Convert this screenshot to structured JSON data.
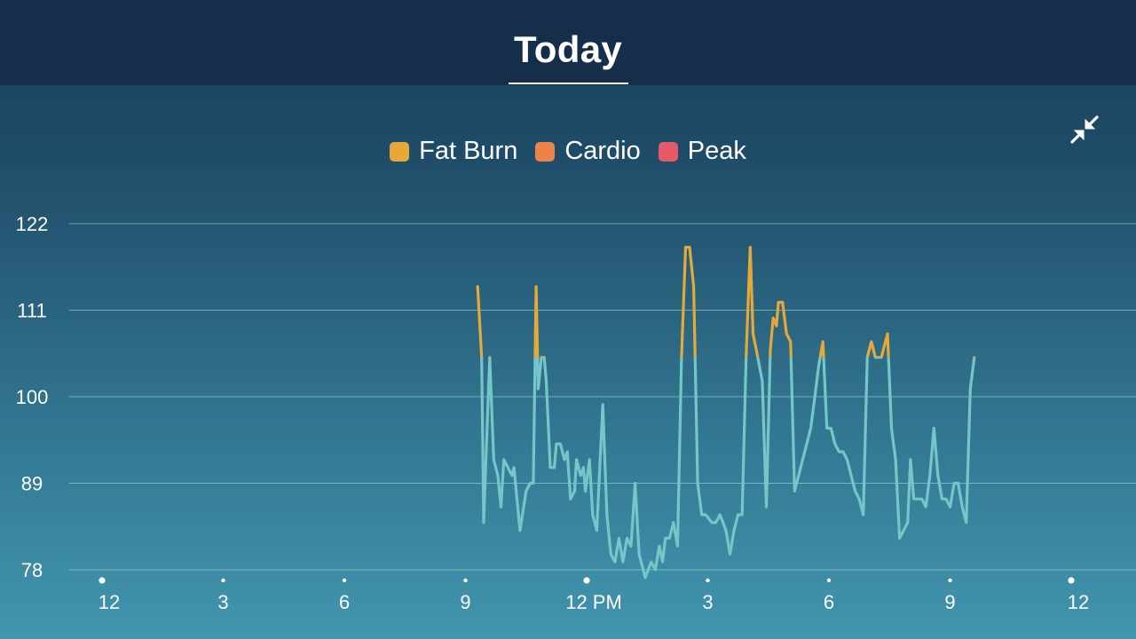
{
  "header": {
    "title": "Today"
  },
  "controls": {
    "collapse_icon": "collapse-arrows-icon"
  },
  "colors": {
    "fat_burn": "#e5a93a",
    "cardio": "#ec8446",
    "peak": "#e65a68",
    "line_normal": "#74c6c9",
    "grid": "#b9dbe4"
  },
  "legend": [
    {
      "label": "Fat Burn",
      "color": "#e5a93a"
    },
    {
      "label": "Cardio",
      "color": "#ec8446"
    },
    {
      "label": "Peak",
      "color": "#e65a68"
    }
  ],
  "chart_data": {
    "type": "line",
    "title": "",
    "xlabel": "",
    "ylabel": "",
    "grid": true,
    "legend_position": "top-center",
    "y_ticks": [
      122,
      111,
      100,
      89,
      78
    ],
    "ylim": [
      78,
      122
    ],
    "x_ticks": [
      "12",
      "3",
      "6",
      "9",
      "12 PM",
      "3",
      "6",
      "9",
      "12"
    ],
    "x_tick_hours": [
      0,
      3,
      6,
      9,
      12,
      15,
      18,
      21,
      24
    ],
    "xlim": [
      0,
      24
    ],
    "zone_thresholds": {
      "fat_burn_min": 105
    },
    "series": [
      {
        "points": [
          [
            9.3,
            114
          ],
          [
            9.4,
            105
          ],
          [
            9.45,
            84
          ],
          [
            9.55,
            98
          ],
          [
            9.6,
            105
          ],
          [
            9.7,
            92
          ],
          [
            9.8,
            90
          ],
          [
            9.88,
            86
          ],
          [
            9.95,
            92
          ],
          [
            10.05,
            91
          ],
          [
            10.15,
            90
          ],
          [
            10.2,
            91
          ],
          [
            10.35,
            83
          ],
          [
            10.5,
            88
          ],
          [
            10.6,
            89
          ],
          [
            10.68,
            89
          ],
          [
            10.75,
            114
          ],
          [
            10.8,
            101
          ],
          [
            10.88,
            105
          ],
          [
            10.95,
            105
          ],
          [
            11.0,
            102
          ],
          [
            11.1,
            91
          ],
          [
            11.2,
            91
          ],
          [
            11.25,
            94
          ],
          [
            11.35,
            94
          ],
          [
            11.45,
            92
          ],
          [
            11.52,
            93
          ],
          [
            11.6,
            87
          ],
          [
            11.7,
            88
          ],
          [
            11.75,
            92
          ],
          [
            11.85,
            90
          ],
          [
            11.92,
            91
          ],
          [
            11.97,
            88
          ],
          [
            12.07,
            92
          ],
          [
            12.15,
            85
          ],
          [
            12.25,
            83
          ],
          [
            12.4,
            99
          ],
          [
            12.5,
            85
          ],
          [
            12.6,
            80
          ],
          [
            12.7,
            79
          ],
          [
            12.8,
            82
          ],
          [
            12.9,
            79
          ],
          [
            13.0,
            82
          ],
          [
            13.1,
            81
          ],
          [
            13.2,
            89
          ],
          [
            13.3,
            80
          ],
          [
            13.45,
            77
          ],
          [
            13.6,
            79
          ],
          [
            13.7,
            78
          ],
          [
            13.8,
            81
          ],
          [
            13.88,
            79
          ],
          [
            13.95,
            82
          ],
          [
            14.05,
            82
          ],
          [
            14.15,
            84
          ],
          [
            14.25,
            81
          ],
          [
            14.35,
            105
          ],
          [
            14.45,
            119
          ],
          [
            14.55,
            119
          ],
          [
            14.65,
            114
          ],
          [
            14.75,
            89
          ],
          [
            14.85,
            85
          ],
          [
            14.95,
            85
          ],
          [
            15.1,
            84
          ],
          [
            15.2,
            84
          ],
          [
            15.3,
            85
          ],
          [
            15.45,
            83
          ],
          [
            15.55,
            80
          ],
          [
            15.65,
            83
          ],
          [
            15.75,
            85
          ],
          [
            15.85,
            85
          ],
          [
            15.95,
            105
          ],
          [
            16.05,
            119
          ],
          [
            16.12,
            108
          ],
          [
            16.2,
            106
          ],
          [
            16.35,
            102
          ],
          [
            16.45,
            86
          ],
          [
            16.55,
            106
          ],
          [
            16.62,
            110
          ],
          [
            16.7,
            109
          ],
          [
            16.75,
            112
          ],
          [
            16.85,
            112
          ],
          [
            16.95,
            108
          ],
          [
            17.05,
            107
          ],
          [
            17.15,
            88
          ],
          [
            17.25,
            90
          ],
          [
            17.35,
            92
          ],
          [
            17.45,
            94
          ],
          [
            17.55,
            96
          ],
          [
            17.65,
            100
          ],
          [
            17.75,
            104
          ],
          [
            17.85,
            107
          ],
          [
            17.95,
            96
          ],
          [
            18.05,
            96
          ],
          [
            18.15,
            94
          ],
          [
            18.25,
            93
          ],
          [
            18.35,
            93
          ],
          [
            18.45,
            92
          ],
          [
            18.55,
            90
          ],
          [
            18.65,
            88
          ],
          [
            18.75,
            87
          ],
          [
            18.85,
            85
          ],
          [
            18.95,
            105
          ],
          [
            19.05,
            107
          ],
          [
            19.15,
            105
          ],
          [
            19.3,
            105
          ],
          [
            19.45,
            108
          ],
          [
            19.55,
            96
          ],
          [
            19.65,
            92
          ],
          [
            19.75,
            82
          ],
          [
            19.85,
            83
          ],
          [
            19.95,
            84
          ],
          [
            20.02,
            92
          ],
          [
            20.1,
            87
          ],
          [
            20.2,
            87
          ],
          [
            20.3,
            87
          ],
          [
            20.4,
            86
          ],
          [
            20.5,
            90
          ],
          [
            20.6,
            96
          ],
          [
            20.7,
            90
          ],
          [
            20.8,
            87
          ],
          [
            20.9,
            87
          ],
          [
            21.0,
            86
          ],
          [
            21.1,
            89
          ],
          [
            21.2,
            89
          ],
          [
            21.3,
            86
          ],
          [
            21.4,
            84
          ],
          [
            21.5,
            101
          ],
          [
            21.6,
            105
          ]
        ]
      }
    ]
  }
}
